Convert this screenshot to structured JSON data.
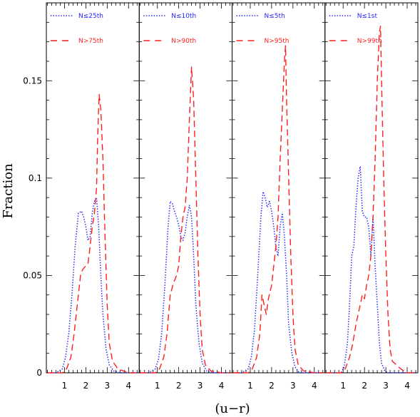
{
  "chart_data": {
    "type": "line",
    "xlabel": "(u−r)",
    "ylabel": "Fraction",
    "xlim": [
      0.15,
      4.5
    ],
    "ylim": [
      0,
      0.19
    ],
    "xticks": [
      1,
      2,
      3,
      4
    ],
    "xtick_labels": [
      "1",
      "2",
      "3",
      "4"
    ],
    "yticks": [
      0,
      0.05,
      0.1,
      0.15
    ],
    "ytick_labels": [
      "0",
      "0.05",
      "0.1",
      "0.15"
    ],
    "grid": false,
    "legend_placement": "top-left",
    "colors": {
      "low": "#1f1fff",
      "high": "#ff1f1f"
    },
    "panels": [
      {
        "series": [
          {
            "name": "N≤25th",
            "style": "dotted",
            "color": "#1f1fff",
            "x": [
              0.2,
              0.6,
              0.9,
              1.05,
              1.2,
              1.35,
              1.5,
              1.65,
              1.8,
              1.9,
              2.0,
              2.1,
              2.2,
              2.3,
              2.4,
              2.5,
              2.6,
              2.7,
              2.8,
              2.95,
              3.1,
              3.3,
              3.6,
              4.0,
              4.4
            ],
            "y": [
              0,
              0,
              0.002,
              0.008,
              0.02,
              0.04,
              0.065,
              0.082,
              0.083,
              0.08,
              0.075,
              0.068,
              0.07,
              0.082,
              0.088,
              0.09,
              0.075,
              0.05,
              0.03,
              0.012,
              0.004,
              0.001,
              0,
              0,
              0
            ]
          },
          {
            "name": "N>75th",
            "style": "dashed",
            "color": "#ff1f1f",
            "x": [
              0.2,
              0.6,
              0.9,
              1.1,
              1.3,
              1.45,
              1.6,
              1.75,
              1.85,
              2.0,
              2.1,
              2.2,
              2.3,
              2.4,
              2.5,
              2.55,
              2.62,
              2.7,
              2.8,
              2.9,
              3.0,
              3.1,
              3.25,
              3.5,
              4.0,
              4.4
            ],
            "y": [
              0,
              0,
              0,
              0.002,
              0.008,
              0.02,
              0.035,
              0.05,
              0.053,
              0.055,
              0.056,
              0.065,
              0.075,
              0.082,
              0.095,
              0.12,
              0.143,
              0.135,
              0.11,
              0.07,
              0.035,
              0.015,
              0.006,
              0.002,
              0,
              0
            ]
          }
        ]
      },
      {
        "series": [
          {
            "name": "N≤10th",
            "style": "dotted",
            "color": "#1f1fff",
            "x": [
              0.2,
              0.6,
              0.9,
              1.05,
              1.2,
              1.35,
              1.5,
              1.6,
              1.7,
              1.8,
              1.9,
              2.0,
              2.1,
              2.2,
              2.3,
              2.4,
              2.5,
              2.6,
              2.7,
              2.8,
              2.95,
              3.1,
              3.3,
              3.6,
              4.0,
              4.4
            ],
            "y": [
              0,
              0,
              0.002,
              0.007,
              0.02,
              0.045,
              0.075,
              0.088,
              0.087,
              0.083,
              0.08,
              0.076,
              0.07,
              0.068,
              0.072,
              0.08,
              0.086,
              0.08,
              0.06,
              0.035,
              0.015,
              0.005,
              0.001,
              0,
              0,
              0
            ]
          },
          {
            "name": "N>90th",
            "style": "dashed",
            "color": "#ff1f1f",
            "x": [
              0.2,
              0.6,
              0.9,
              1.1,
              1.3,
              1.45,
              1.6,
              1.75,
              1.9,
              2.0,
              2.1,
              2.2,
              2.3,
              2.4,
              2.5,
              2.6,
              2.7,
              2.8,
              2.9,
              3.0,
              3.1,
              3.25,
              3.5,
              4.0,
              4.4
            ],
            "y": [
              0,
              0,
              0,
              0.002,
              0.008,
              0.02,
              0.04,
              0.046,
              0.05,
              0.055,
              0.07,
              0.08,
              0.085,
              0.1,
              0.13,
              0.157,
              0.14,
              0.1,
              0.06,
              0.03,
              0.012,
              0.004,
              0.001,
              0,
              0
            ]
          }
        ]
      },
      {
        "series": [
          {
            "name": "N≤5th",
            "style": "dotted",
            "color": "#1f1fff",
            "x": [
              0.2,
              0.6,
              0.9,
              1.05,
              1.2,
              1.35,
              1.5,
              1.6,
              1.7,
              1.8,
              1.9,
              2.0,
              2.1,
              2.2,
              2.3,
              2.4,
              2.5,
              2.6,
              2.7,
              2.8,
              2.95,
              3.1,
              3.3,
              3.6,
              4.0,
              4.4
            ],
            "y": [
              0,
              0,
              0.002,
              0.008,
              0.022,
              0.05,
              0.08,
              0.093,
              0.09,
              0.085,
              0.088,
              0.083,
              0.075,
              0.065,
              0.06,
              0.075,
              0.082,
              0.07,
              0.05,
              0.025,
              0.01,
              0.003,
              0,
              0,
              0,
              0
            ]
          },
          {
            "name": "N>95th",
            "style": "dashed",
            "color": "#ff1f1f",
            "x": [
              0.2,
              0.6,
              0.9,
              1.1,
              1.3,
              1.45,
              1.55,
              1.65,
              1.75,
              1.85,
              2.0,
              2.1,
              2.2,
              2.3,
              2.4,
              2.5,
              2.6,
              2.65,
              2.7,
              2.8,
              2.9,
              3.0,
              3.1,
              3.25,
              3.5,
              4.0,
              4.4
            ],
            "y": [
              0,
              0,
              0,
              0.002,
              0.008,
              0.02,
              0.04,
              0.035,
              0.03,
              0.038,
              0.045,
              0.055,
              0.065,
              0.08,
              0.11,
              0.135,
              0.16,
              0.168,
              0.14,
              0.1,
              0.06,
              0.03,
              0.012,
              0.004,
              0.001,
              0,
              0
            ]
          }
        ]
      },
      {
        "series": [
          {
            "name": "N≤1st",
            "style": "dotted",
            "color": "#1f1fff",
            "x": [
              0.2,
              0.6,
              0.9,
              1.05,
              1.2,
              1.3,
              1.4,
              1.5,
              1.6,
              1.7,
              1.8,
              1.9,
              2.0,
              2.1,
              2.2,
              2.3,
              2.4,
              2.5,
              2.6,
              2.7,
              2.8,
              2.95,
              3.1,
              3.3,
              3.6,
              4.0,
              4.4
            ],
            "y": [
              0,
              0,
              0,
              0.003,
              0.015,
              0.035,
              0.06,
              0.065,
              0.085,
              0.1,
              0.106,
              0.083,
              0.08,
              0.08,
              0.075,
              0.06,
              0.08,
              0.055,
              0.035,
              0.015,
              0.005,
              0.001,
              0,
              0,
              0,
              0,
              0
            ]
          },
          {
            "name": "N>99th",
            "style": "dashed",
            "color": "#ff1f1f",
            "x": [
              0.2,
              0.6,
              0.9,
              1.1,
              1.3,
              1.45,
              1.6,
              1.7,
              1.8,
              1.9,
              2.0,
              2.1,
              2.2,
              2.3,
              2.4,
              2.5,
              2.6,
              2.7,
              2.75,
              2.8,
              2.9,
              3.0,
              3.1,
              3.2,
              3.3,
              3.5,
              3.7,
              4.0,
              4.4
            ],
            "y": [
              0,
              0,
              0,
              0.002,
              0.008,
              0.015,
              0.025,
              0.03,
              0.035,
              0.04,
              0.038,
              0.045,
              0.05,
              0.06,
              0.08,
              0.11,
              0.15,
              0.175,
              0.178,
              0.15,
              0.1,
              0.06,
              0.03,
              0.012,
              0.006,
              0.004,
              0.002,
              0,
              0
            ]
          }
        ]
      }
    ]
  }
}
